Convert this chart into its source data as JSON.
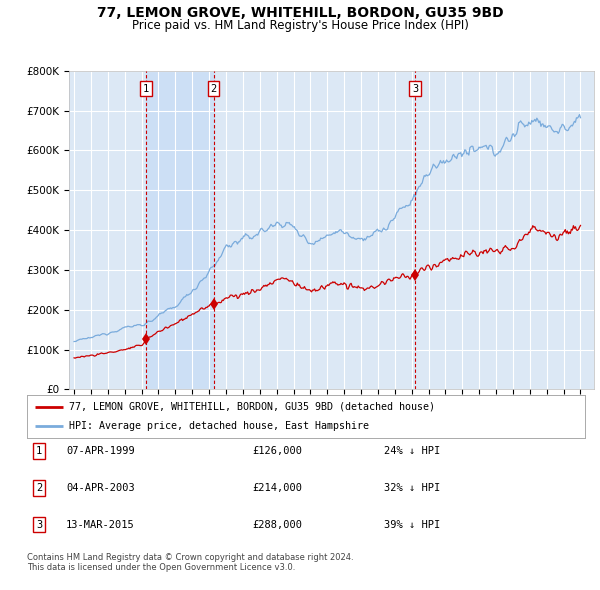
{
  "title": "77, LEMON GROVE, WHITEHILL, BORDON, GU35 9BD",
  "subtitle": "Price paid vs. HM Land Registry's House Price Index (HPI)",
  "title_fontsize": 10,
  "subtitle_fontsize": 8.5,
  "background_color": "#ffffff",
  "plot_bg_color": "#dce8f5",
  "grid_color": "#ffffff",
  "ylim": [
    0,
    800000
  ],
  "yticks": [
    0,
    100000,
    200000,
    300000,
    400000,
    500000,
    600000,
    700000,
    800000
  ],
  "ytick_labels": [
    "£0",
    "£100K",
    "£200K",
    "£300K",
    "£400K",
    "£500K",
    "£600K",
    "£700K",
    "£800K"
  ],
  "hpi_color": "#7aabdc",
  "price_color": "#cc0000",
  "vline_color": "#cc0000",
  "shade_color": "#ccdff5",
  "legend_label_price": "77, LEMON GROVE, WHITEHILL, BORDON, GU35 9BD (detached house)",
  "legend_label_hpi": "HPI: Average price, detached house, East Hampshire",
  "transactions": [
    {
      "num": 1,
      "date": "07-APR-1999",
      "year": 1999.27,
      "price": 126000,
      "hpi_pct": "24% ↓ HPI"
    },
    {
      "num": 2,
      "date": "04-APR-2003",
      "year": 2003.26,
      "price": 214000,
      "hpi_pct": "32% ↓ HPI"
    },
    {
      "num": 3,
      "date": "13-MAR-2015",
      "year": 2015.2,
      "price": 288000,
      "hpi_pct": "39% ↓ HPI"
    }
  ],
  "footer_line1": "Contains HM Land Registry data © Crown copyright and database right 2024.",
  "footer_line2": "This data is licensed under the Open Government Licence v3.0.",
  "mono_font": "DejaVu Sans Mono",
  "hpi_waypoints": [
    [
      1995.0,
      120000
    ],
    [
      1996.0,
      130000
    ],
    [
      1997.0,
      142000
    ],
    [
      1998.0,
      155000
    ],
    [
      1999.0,
      163000
    ],
    [
      1999.5,
      170000
    ],
    [
      2000.0,
      185000
    ],
    [
      2001.0,
      208000
    ],
    [
      2002.0,
      248000
    ],
    [
      2003.0,
      295000
    ],
    [
      2003.5,
      320000
    ],
    [
      2004.0,
      360000
    ],
    [
      2005.0,
      375000
    ],
    [
      2006.0,
      395000
    ],
    [
      2007.0,
      415000
    ],
    [
      2007.5,
      420000
    ],
    [
      2008.0,
      405000
    ],
    [
      2008.5,
      385000
    ],
    [
      2009.0,
      370000
    ],
    [
      2009.5,
      375000
    ],
    [
      2010.0,
      385000
    ],
    [
      2010.5,
      400000
    ],
    [
      2011.0,
      395000
    ],
    [
      2011.5,
      385000
    ],
    [
      2012.0,
      380000
    ],
    [
      2012.5,
      385000
    ],
    [
      2013.0,
      395000
    ],
    [
      2013.5,
      405000
    ],
    [
      2014.0,
      430000
    ],
    [
      2014.5,
      455000
    ],
    [
      2015.0,
      475000
    ],
    [
      2015.5,
      510000
    ],
    [
      2016.0,
      545000
    ],
    [
      2016.5,
      560000
    ],
    [
      2017.0,
      575000
    ],
    [
      2017.5,
      585000
    ],
    [
      2018.0,
      590000
    ],
    [
      2018.5,
      595000
    ],
    [
      2019.0,
      600000
    ],
    [
      2019.5,
      605000
    ],
    [
      2020.0,
      600000
    ],
    [
      2020.5,
      615000
    ],
    [
      2021.0,
      640000
    ],
    [
      2021.5,
      660000
    ],
    [
      2022.0,
      675000
    ],
    [
      2022.5,
      680000
    ],
    [
      2023.0,
      660000
    ],
    [
      2023.5,
      650000
    ],
    [
      2024.0,
      655000
    ],
    [
      2024.5,
      665000
    ],
    [
      2025.0,
      670000
    ]
  ],
  "price_waypoints": [
    [
      1995.0,
      80000
    ],
    [
      1996.0,
      85000
    ],
    [
      1997.0,
      92000
    ],
    [
      1998.0,
      100000
    ],
    [
      1999.0,
      110000
    ],
    [
      1999.27,
      126000
    ],
    [
      2000.0,
      145000
    ],
    [
      2001.0,
      165000
    ],
    [
      2002.0,
      190000
    ],
    [
      2003.0,
      208000
    ],
    [
      2003.26,
      214000
    ],
    [
      2004.0,
      230000
    ],
    [
      2005.0,
      238000
    ],
    [
      2006.0,
      252000
    ],
    [
      2007.0,
      275000
    ],
    [
      2007.5,
      278000
    ],
    [
      2008.0,
      268000
    ],
    [
      2008.5,
      255000
    ],
    [
      2009.0,
      248000
    ],
    [
      2009.5,
      252000
    ],
    [
      2010.0,
      260000
    ],
    [
      2010.5,
      268000
    ],
    [
      2011.0,
      262000
    ],
    [
      2011.5,
      255000
    ],
    [
      2012.0,
      252000
    ],
    [
      2012.5,
      255000
    ],
    [
      2013.0,
      262000
    ],
    [
      2013.5,
      270000
    ],
    [
      2014.0,
      278000
    ],
    [
      2014.5,
      282000
    ],
    [
      2015.0,
      285000
    ],
    [
      2015.2,
      288000
    ],
    [
      2015.5,
      295000
    ],
    [
      2016.0,
      308000
    ],
    [
      2016.5,
      315000
    ],
    [
      2017.0,
      325000
    ],
    [
      2017.5,
      330000
    ],
    [
      2018.0,
      335000
    ],
    [
      2018.5,
      340000
    ],
    [
      2019.0,
      345000
    ],
    [
      2019.5,
      348000
    ],
    [
      2020.0,
      342000
    ],
    [
      2020.5,
      350000
    ],
    [
      2021.0,
      360000
    ],
    [
      2021.5,
      375000
    ],
    [
      2022.0,
      395000
    ],
    [
      2022.5,
      410000
    ],
    [
      2023.0,
      395000
    ],
    [
      2023.5,
      385000
    ],
    [
      2024.0,
      390000
    ],
    [
      2024.5,
      400000
    ],
    [
      2025.0,
      405000
    ]
  ]
}
